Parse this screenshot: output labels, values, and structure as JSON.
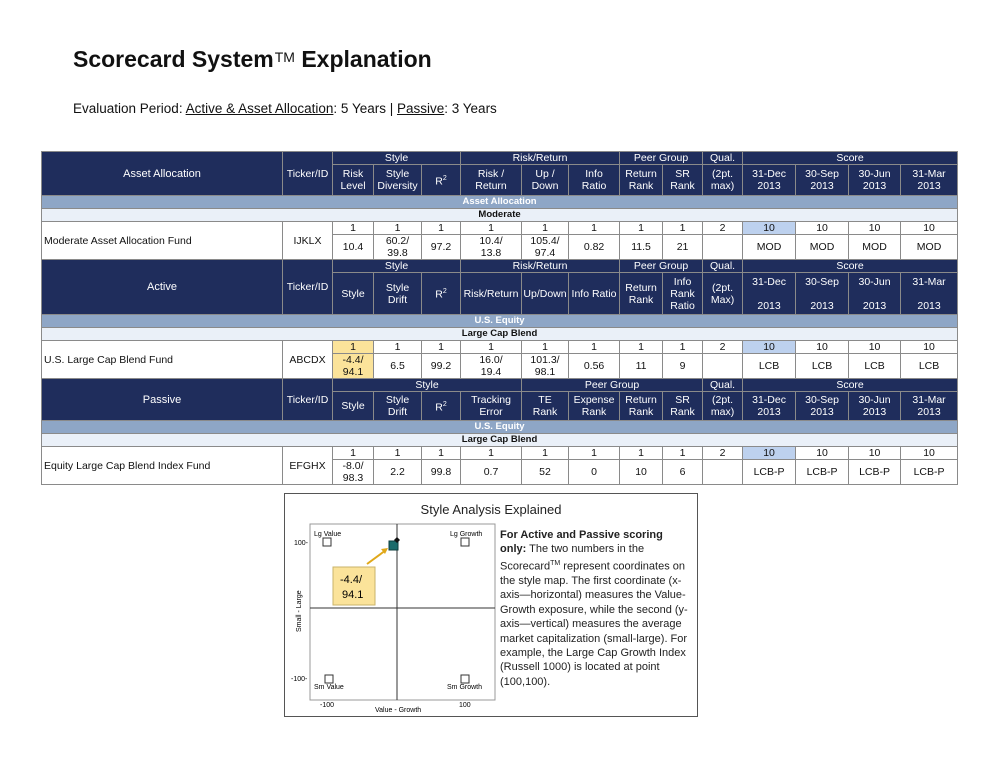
{
  "page": {
    "title": "Scorecard System",
    "title_tm": "TM",
    "title_rest": " Explanation",
    "eval_label": "Evaluation Period:",
    "eval_active": "Active & Asset Allocation",
    "eval_active_value": ": 5 Years | ",
    "eval_passive": "Passive",
    "eval_passive_value": ": 3 Years"
  },
  "headers": {
    "asset_allocation": "Asset Allocation",
    "active": "Active",
    "passive": "Passive",
    "ticker": "Ticker/ID",
    "style": "Style",
    "risk_return": "Risk/Return",
    "peer_group": "Peer Group",
    "qual": "Qual.",
    "score": "Score",
    "risk_level_1": "Risk",
    "risk_level_2": "Level",
    "style_div_1": "Style",
    "style_div_2": "Diversity",
    "r2": "R",
    "r2_sup": "2",
    "risk_ret_1": "Risk /",
    "risk_ret_2": "Return",
    "updown_1": "Up /",
    "updown_2": "Down",
    "info_1": "Info",
    "info_2": "Ratio",
    "ret_rank_1": "Return",
    "ret_rank_2": "Rank",
    "sr_1": "SR",
    "sr_2": "Rank",
    "qual_1": "(2pt.",
    "qual_2": "max)",
    "d1_1": "31-Dec",
    "d1_2": "2013",
    "d2_1": "30-Sep",
    "d2_2": "2013",
    "d3_1": "30-Jun",
    "d3_2": "2013",
    "d4_1": "31-Mar",
    "d4_2": "2013",
    "style_drift_1": "Style",
    "style_drift_2": "Drift",
    "risk_return_one": "Risk/Return",
    "up_down_one": "Up/Down",
    "info_ratio_one": "Info Ratio",
    "info_rank_1": "Info",
    "info_rank_2": "Rank",
    "info_rank_3": "Ratio",
    "qual_active_1": "(2pt.",
    "qual_active_2": "Max)",
    "tracking_1": "Tracking",
    "tracking_2": "Error",
    "te_1": "TE",
    "te_2": "Rank",
    "expense_1": "Expense",
    "expense_2": "Rank"
  },
  "sections": {
    "asset_allocation": "Asset Allocation",
    "moderate": "Moderate",
    "us_equity": "U.S. Equity",
    "large_cap_blend": "Large Cap Blend"
  },
  "rows": {
    "aa": {
      "name": "Moderate Asset Allocation Fund",
      "ticker": "IJKLX",
      "pts": [
        "1",
        "1",
        "1",
        "1",
        "1",
        "1",
        "1",
        "1",
        "2",
        "10",
        "10",
        "10",
        "10"
      ],
      "vals": [
        "10.4",
        "60.2/",
        "39.8",
        "97.2",
        "10.4/",
        "13.8",
        "105.4/",
        "97.4",
        "0.82",
        "11.5",
        "21",
        "",
        "MOD",
        "MOD",
        "MOD",
        "MOD"
      ]
    },
    "active": {
      "name": "U.S. Large Cap Blend Fund",
      "ticker": "ABCDX",
      "pts": [
        "1",
        "1",
        "1",
        "1",
        "1",
        "1",
        "1",
        "1",
        "2",
        "10",
        "10",
        "10",
        "10"
      ],
      "vals": [
        "-4.4/",
        "94.1",
        "6.5",
        "99.2",
        "16.0/",
        "19.4",
        "101.3/",
        "98.1",
        "0.56",
        "11",
        "9",
        "",
        "LCB",
        "LCB",
        "LCB",
        "LCB"
      ]
    },
    "passive": {
      "name": "Equity Large Cap Blend Index Fund",
      "ticker": "EFGHX",
      "pts": [
        "1",
        "1",
        "1",
        "1",
        "1",
        "1",
        "1",
        "1",
        "2",
        "10",
        "10",
        "10",
        "10"
      ],
      "vals": [
        "-8.0/",
        "98.3",
        "2.2",
        "99.8",
        "0.7",
        "52",
        "0",
        "10",
        "6",
        "",
        "LCB-P",
        "LCB-P",
        "LCB-P",
        "LCB-P"
      ]
    }
  },
  "style_box": {
    "title": "Style Analysis Explained",
    "desc_bold": "For Active and Passive scoring only:",
    "desc_text": " The two numbers in the Scorecard",
    "desc_tm": "TM",
    "desc_text2": " represent coordinates on the style map.  The first coordinate (x-axis—horizontal) measures the Value-Growth exposure, while the second (y-axis—vertical) measures the average market capitalization (small-large).  For example, the Large Cap Growth Index (Russell 1000) is located at point (100,100).",
    "lg_value": "Lg Value",
    "lg_growth": "Lg Growth",
    "sm_value": "Sm Value",
    "sm_growth": "Sm Growth",
    "y_top": "100-",
    "y_bottom": "-100-",
    "x_left": "-100",
    "x_right": "100",
    "x_axis": "Value - Growth",
    "y_axis": "Small - Large",
    "callout_1": "-4.4/",
    "callout_2": "94.1",
    "fund_point": {
      "x": -4.4,
      "y": 94.1
    },
    "colors": {
      "fund_marker": "#1a6b6b",
      "callout_bg": "#fbe39a",
      "arrow": "#e0a81a",
      "header_navy": "#1f2d5c",
      "section_blue": "#8ea6c6"
    }
  }
}
